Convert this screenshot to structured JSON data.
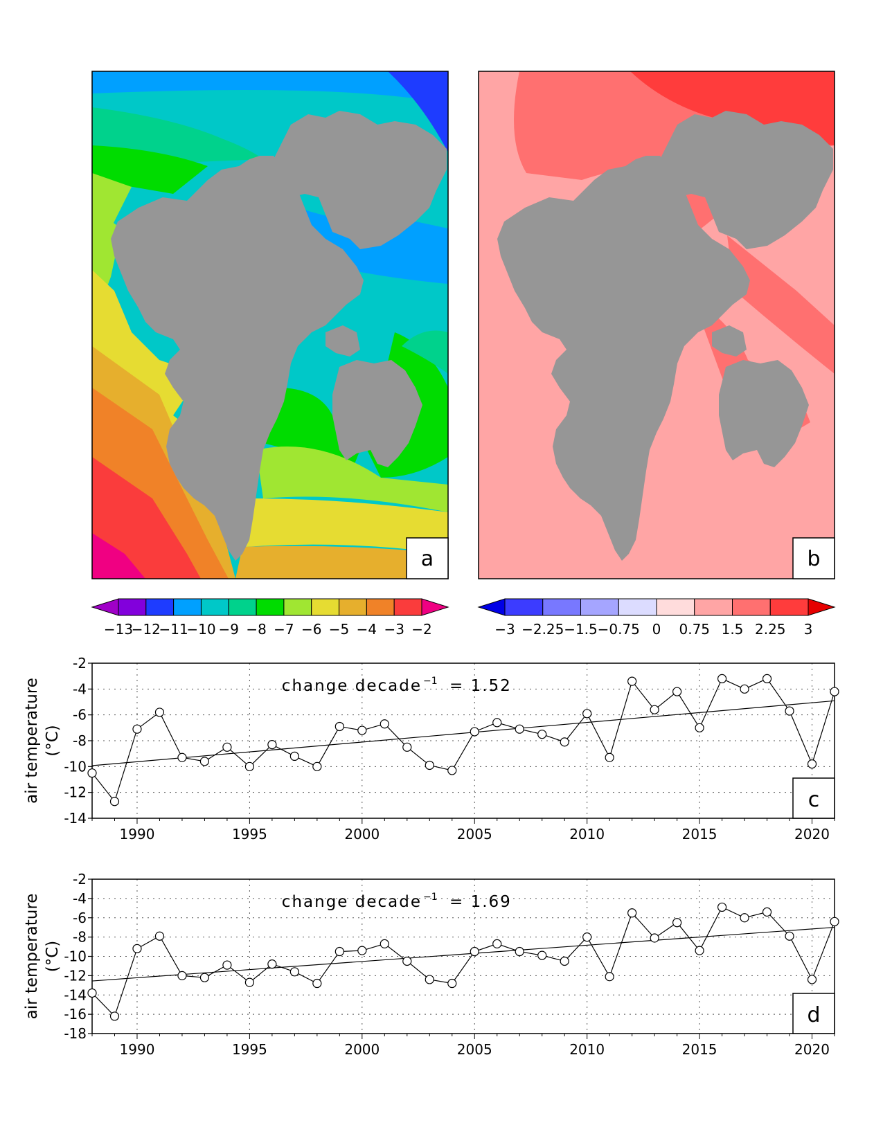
{
  "colors": {
    "land": "#969696",
    "frame": "#000000"
  },
  "maps": [
    {
      "label": "a",
      "colorbar": {
        "tick_labels": [
          "−13",
          "−12",
          "−11",
          "−10",
          "−9",
          "−8",
          "−7",
          "−6",
          "−5",
          "−4",
          "−3",
          "−2"
        ],
        "colors": [
          "#a000c8",
          "#8200dc",
          "#1e3cff",
          "#00a0ff",
          "#00c8c8",
          "#00d28c",
          "#00dc00",
          "#a0e632",
          "#e6dc32",
          "#e6af2d",
          "#f08228",
          "#fa3c3c",
          "#f00082"
        ]
      }
    },
    {
      "label": "b",
      "colorbar": {
        "tick_labels": [
          "−3",
          "−2.25",
          "−1.5",
          "−0.75",
          "0",
          "0.75",
          "1.5",
          "2.25",
          "3"
        ],
        "colors": [
          "#0000e6",
          "#3c3cff",
          "#7878ff",
          "#a5a5ff",
          "#dcdcff",
          "#ffdcdc",
          "#ffa5a5",
          "#ff7070",
          "#ff3c3c",
          "#e60000"
        ]
      }
    }
  ],
  "chart_data": [
    {
      "type": "line",
      "panel_label": "c",
      "ylabel": [
        "air temperature",
        "(°C)"
      ],
      "annotation_prefix": "change decade",
      "annotation_sup": "−1",
      "annotation_value": "= 1.52",
      "x": [
        1988,
        1989,
        1990,
        1991,
        1992,
        1993,
        1994,
        1995,
        1996,
        1997,
        1998,
        1999,
        2000,
        2001,
        2002,
        2003,
        2004,
        2005,
        2006,
        2007,
        2008,
        2009,
        2010,
        2011,
        2012,
        2013,
        2014,
        2015,
        2016,
        2017,
        2018,
        2019,
        2020,
        2021
      ],
      "values": [
        -10.5,
        -12.7,
        -7.1,
        -5.8,
        -9.3,
        -9.6,
        -8.5,
        -10.0,
        -8.3,
        -9.2,
        -10.0,
        -6.9,
        -7.2,
        -6.7,
        -8.5,
        -9.9,
        -10.3,
        -7.3,
        -6.6,
        -7.1,
        -7.5,
        -8.1,
        -5.9,
        -9.3,
        -3.4,
        -5.6,
        -4.2,
        -7.0,
        -3.2,
        -4.0,
        -3.2,
        -5.7,
        -9.8,
        -4.2
      ],
      "trend": {
        "start": [
          1988,
          -9.93
        ],
        "end": [
          2021,
          -4.91
        ]
      },
      "xlim": [
        1988,
        2021
      ],
      "ylim": [
        -14,
        -2
      ],
      "xticks": [
        1990,
        1995,
        2000,
        2005,
        2010,
        2015,
        2020
      ],
      "yticks": [
        -14,
        -12,
        -10,
        -8,
        -6,
        -4,
        -2
      ],
      "grid": true
    },
    {
      "type": "line",
      "panel_label": "d",
      "ylabel": [
        "air temperature",
        "(°C)"
      ],
      "annotation_prefix": "change decade",
      "annotation_sup": "−1",
      "annotation_value": "= 1.69",
      "x": [
        1988,
        1989,
        1990,
        1991,
        1992,
        1993,
        1994,
        1995,
        1996,
        1997,
        1998,
        1999,
        2000,
        2001,
        2002,
        2003,
        2004,
        2005,
        2006,
        2007,
        2008,
        2009,
        2010,
        2011,
        2012,
        2013,
        2014,
        2015,
        2016,
        2017,
        2018,
        2019,
        2020,
        2021
      ],
      "values": [
        -13.8,
        -16.2,
        -9.2,
        -7.9,
        -12.0,
        -12.2,
        -10.9,
        -12.7,
        -10.8,
        -11.6,
        -12.8,
        -9.5,
        -9.4,
        -8.7,
        -10.5,
        -12.4,
        -12.8,
        -9.5,
        -8.7,
        -9.5,
        -9.9,
        -10.5,
        -8.0,
        -12.1,
        -5.5,
        -8.1,
        -6.5,
        -9.4,
        -4.9,
        -6.0,
        -5.4,
        -7.9,
        -12.4,
        -6.4
      ],
      "trend": {
        "start": [
          1988,
          -12.55
        ],
        "end": [
          2021,
          -6.99
        ]
      },
      "xlim": [
        1988,
        2021
      ],
      "ylim": [
        -18,
        -2
      ],
      "xticks": [
        1990,
        1995,
        2000,
        2005,
        2010,
        2015,
        2020
      ],
      "yticks": [
        -18,
        -16,
        -14,
        -12,
        -10,
        -8,
        -6,
        -4,
        -2
      ],
      "grid": true
    }
  ]
}
